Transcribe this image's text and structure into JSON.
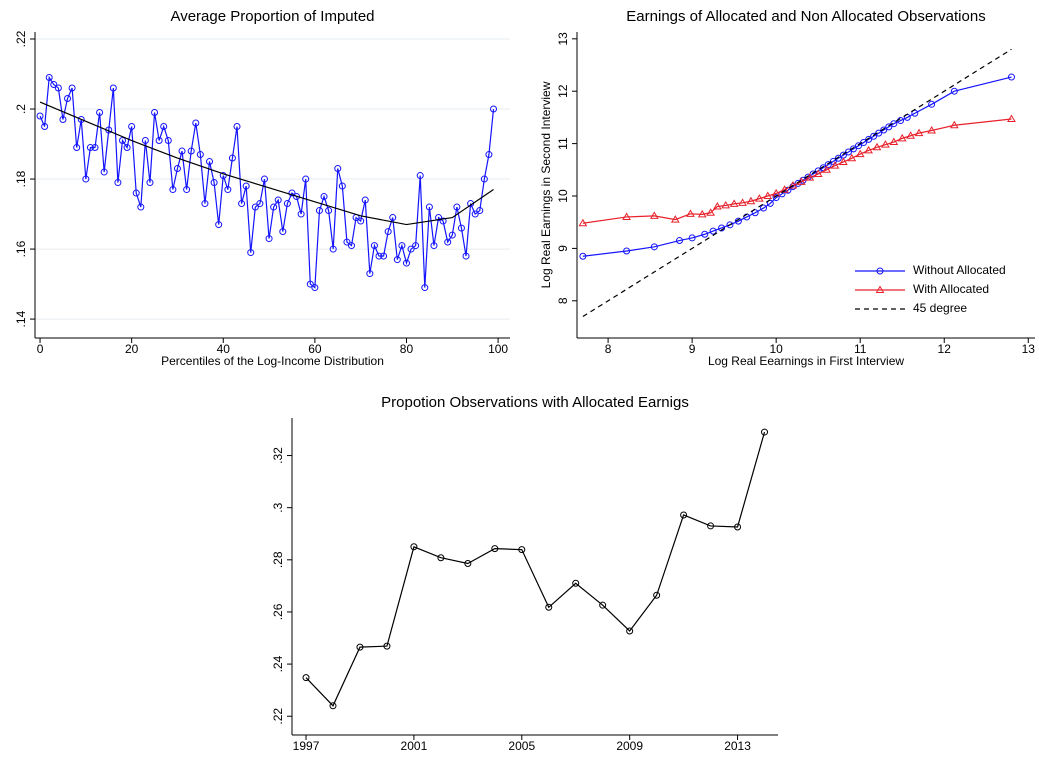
{
  "chart_data": [
    {
      "type": "line",
      "title": "Average Proportion of Imputed",
      "xlabel": "Percentiles of the Log-Income Distribution",
      "xlim": [
        -1.1,
        102.6
      ],
      "ylim": [
        0.1346,
        0.222
      ],
      "xticks": [
        0,
        20,
        40,
        60,
        80,
        100
      ],
      "yticks": [
        {
          "value": 0.14,
          "label": ".14"
        },
        {
          "value": 0.16,
          "label": ".16"
        },
        {
          "value": 0.18,
          "label": ".18"
        },
        {
          "value": 0.2,
          "label": ".2"
        },
        {
          "value": 0.22,
          "label": ".22"
        }
      ],
      "grid": true,
      "series": [
        {
          "color": "#1414ff",
          "marker": "circle",
          "x": [
            0,
            1,
            2,
            3,
            4,
            5,
            6,
            7,
            8,
            9,
            10,
            11,
            12,
            13,
            14,
            15,
            16,
            17,
            18,
            19,
            20,
            21,
            22,
            23,
            24,
            25,
            26,
            27,
            28,
            29,
            30,
            31,
            32,
            33,
            34,
            35,
            36,
            37,
            38,
            39,
            40,
            41,
            42,
            43,
            44,
            45,
            46,
            47,
            48,
            49,
            50,
            51,
            52,
            53,
            54,
            55,
            56,
            57,
            58,
            59,
            60,
            61,
            62,
            63,
            64,
            65,
            66,
            67,
            68,
            69,
            70,
            71,
            72,
            73,
            74,
            75,
            76,
            77,
            78,
            79,
            80,
            81,
            82,
            83,
            84,
            85,
            86,
            87,
            88,
            89,
            90,
            91,
            92,
            93,
            94,
            95,
            96,
            97,
            98,
            99
          ],
          "values": [
            0.198,
            0.195,
            0.209,
            0.207,
            0.206,
            0.197,
            0.203,
            0.206,
            0.189,
            0.197,
            0.18,
            0.189,
            0.189,
            0.199,
            0.182,
            0.194,
            0.206,
            0.179,
            0.191,
            0.189,
            0.195,
            0.176,
            0.172,
            0.191,
            0.179,
            0.199,
            0.191,
            0.195,
            0.191,
            0.177,
            0.183,
            0.188,
            0.177,
            0.188,
            0.196,
            0.187,
            0.173,
            0.185,
            0.179,
            0.167,
            0.181,
            0.177,
            0.186,
            0.195,
            0.173,
            0.178,
            0.159,
            0.172,
            0.173,
            0.18,
            0.163,
            0.172,
            0.174,
            0.165,
            0.173,
            0.176,
            0.175,
            0.17,
            0.18,
            0.15,
            0.149,
            0.171,
            0.175,
            0.171,
            0.16,
            0.183,
            0.178,
            0.162,
            0.161,
            0.169,
            0.168,
            0.174,
            0.153,
            0.161,
            0.158,
            0.158,
            0.165,
            0.169,
            0.157,
            0.161,
            0.156,
            0.16,
            0.161,
            0.181,
            0.149,
            0.172,
            0.161,
            0.169,
            0.168,
            0.162,
            0.164,
            0.172,
            0.166,
            0.158,
            0.173,
            0.17,
            0.171,
            0.18,
            0.187,
            0.2
          ]
        },
        {
          "color": "#000000",
          "marker": "none",
          "x": [
            0,
            10,
            20,
            30,
            40,
            50,
            60,
            70,
            80,
            90,
            99
          ],
          "values": [
            0.202,
            0.1965,
            0.191,
            0.186,
            0.1815,
            0.1775,
            0.1735,
            0.1695,
            0.167,
            0.169,
            0.177
          ]
        }
      ]
    },
    {
      "type": "line",
      "title": "Earnings of Allocated and Non Allocated Observations",
      "xlabel": "Log Real Eearnings in First Interview",
      "ylabel": "Log Real Earnings in Second Interview",
      "xlim": [
        7.63,
        13.08
      ],
      "ylim": [
        7.29,
        13.13
      ],
      "xticks": [
        8,
        9,
        10,
        11,
        12,
        13
      ],
      "yticks": [
        8,
        9,
        10,
        11,
        12,
        13
      ],
      "legend": "lower right",
      "series": [
        {
          "name": "Without Allocated",
          "color": "#1414ff",
          "marker": "circle",
          "x": [
            7.7,
            8.22,
            8.55,
            8.85,
            9.0,
            9.15,
            9.25,
            9.35,
            9.45,
            9.55,
            9.65,
            9.75,
            9.85,
            9.93,
            10.0,
            10.07,
            10.14,
            10.2,
            10.26,
            10.32,
            10.38,
            10.44,
            10.5,
            10.56,
            10.62,
            10.68,
            10.74,
            10.8,
            10.86,
            10.92,
            10.98,
            11.04,
            11.1,
            11.16,
            11.22,
            11.28,
            11.34,
            11.4,
            11.48,
            11.56,
            11.65,
            11.85,
            12.12,
            12.8
          ],
          "values": [
            8.85,
            8.95,
            9.03,
            9.15,
            9.2,
            9.27,
            9.33,
            9.39,
            9.45,
            9.52,
            9.6,
            9.68,
            9.77,
            9.86,
            9.97,
            10.04,
            10.11,
            10.18,
            10.24,
            10.3,
            10.36,
            10.42,
            10.48,
            10.54,
            10.6,
            10.66,
            10.72,
            10.78,
            10.84,
            10.9,
            10.96,
            11.02,
            11.08,
            11.14,
            11.2,
            11.26,
            11.32,
            11.38,
            11.44,
            11.5,
            11.58,
            11.75,
            12.0,
            12.27
          ]
        },
        {
          "name": "With Allocated",
          "color": "#e8202a",
          "marker": "triangle",
          "x": [
            7.7,
            8.22,
            8.55,
            8.8,
            8.98,
            9.12,
            9.22,
            9.3,
            9.4,
            9.5,
            9.6,
            9.7,
            9.8,
            9.9,
            10.0,
            10.1,
            10.2,
            10.3,
            10.4,
            10.5,
            10.6,
            10.7,
            10.8,
            10.9,
            11.0,
            11.1,
            11.2,
            11.3,
            11.4,
            11.5,
            11.6,
            11.7,
            11.85,
            12.12,
            12.8
          ],
          "values": [
            9.48,
            9.6,
            9.62,
            9.55,
            9.66,
            9.65,
            9.68,
            9.8,
            9.82,
            9.85,
            9.87,
            9.9,
            9.95,
            10.0,
            10.05,
            10.12,
            10.2,
            10.27,
            10.35,
            10.42,
            10.5,
            10.58,
            10.65,
            10.72,
            10.8,
            10.87,
            10.93,
            10.98,
            11.03,
            11.1,
            11.15,
            11.2,
            11.25,
            11.35,
            11.47
          ]
        },
        {
          "name": "45 degree",
          "color": "#000000",
          "marker": "none",
          "dashed": true,
          "x": [
            7.7,
            12.8
          ],
          "values": [
            7.7,
            12.8
          ]
        }
      ]
    },
    {
      "type": "line",
      "title": "Propotion Observations with Allocated Earnigs",
      "xlim": [
        1996.48,
        2014.5
      ],
      "ylim": [
        0.2128,
        0.3344
      ],
      "xticks": [
        1997,
        2001,
        2005,
        2009,
        2013
      ],
      "yticks": [
        {
          "value": 0.22,
          "label": ".22"
        },
        {
          "value": 0.24,
          "label": ".24"
        },
        {
          "value": 0.26,
          "label": ".26"
        },
        {
          "value": 0.28,
          "label": ".28"
        },
        {
          "value": 0.3,
          "label": ".3"
        },
        {
          "value": 0.32,
          "label": ".32"
        }
      ],
      "series": [
        {
          "color": "#000000",
          "marker": "circle",
          "x": [
            1997,
            1998,
            1999,
            2000,
            2001,
            2002,
            2003,
            2004,
            2005,
            2006,
            2007,
            2008,
            2009,
            2010,
            2011,
            2012,
            2013,
            2014
          ],
          "values": [
            0.2348,
            0.224,
            0.2465,
            0.2469,
            0.285,
            0.2808,
            0.2786,
            0.2843,
            0.2839,
            0.2618,
            0.271,
            0.2626,
            0.2527,
            0.2664,
            0.2972,
            0.293,
            0.2926,
            0.329
          ]
        }
      ]
    }
  ]
}
